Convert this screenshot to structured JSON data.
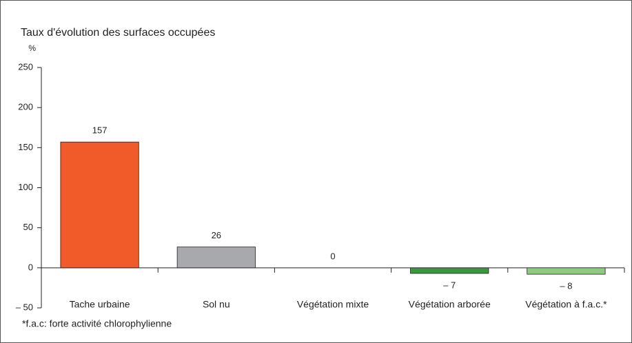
{
  "chart_data": {
    "type": "bar",
    "title": "Taux d'évolution des surfaces occupées",
    "y_unit": "%",
    "categories": [
      "Tache urbaine",
      "Sol nu",
      "Végétation mixte",
      "Végétation arborée",
      "Végétation à f.a.c.*"
    ],
    "values": [
      157,
      26,
      0,
      -7,
      -8
    ],
    "value_labels": [
      "157",
      "26",
      "0",
      "– 7",
      "– 8"
    ],
    "colors": [
      "#f15a29",
      "#a7a9ac",
      "#a7a9ac",
      "#3a983f",
      "#8dcb7e"
    ],
    "ylim": [
      -50,
      250
    ],
    "yticks": [
      {
        "value": -50,
        "label": "– 50"
      },
      0,
      50,
      100,
      150,
      200,
      250
    ],
    "footnote": "*f.a.c: forte activité chlorophylienne"
  }
}
